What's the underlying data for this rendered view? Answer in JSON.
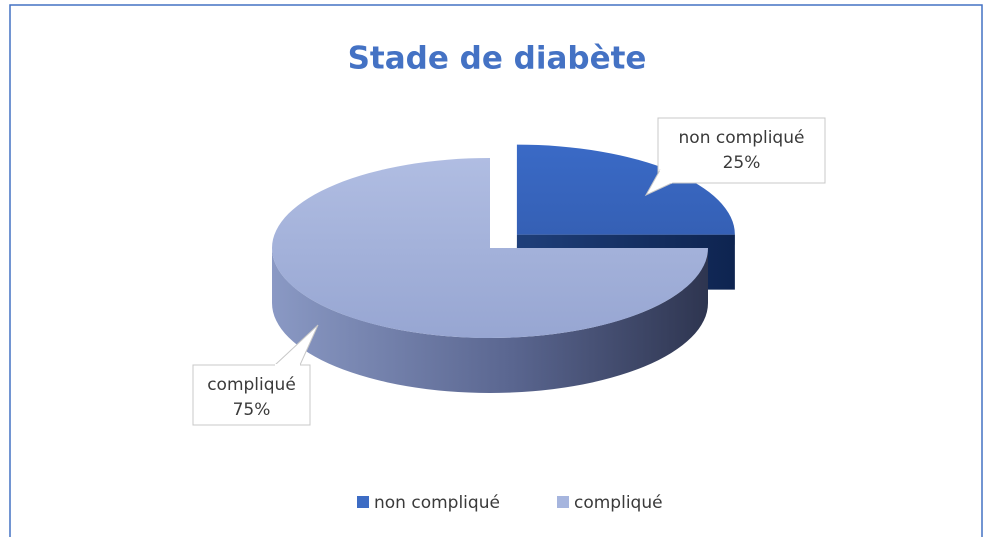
{
  "chart_data": {
    "type": "pie",
    "title": "Stade de diabète",
    "categories": [
      "non compliqué",
      "compliqué"
    ],
    "values": [
      25,
      75
    ],
    "value_labels": [
      "25%",
      "75%"
    ],
    "colors": [
      "#3d6cc4",
      "#a6b5de"
    ],
    "legend": "bottom"
  }
}
